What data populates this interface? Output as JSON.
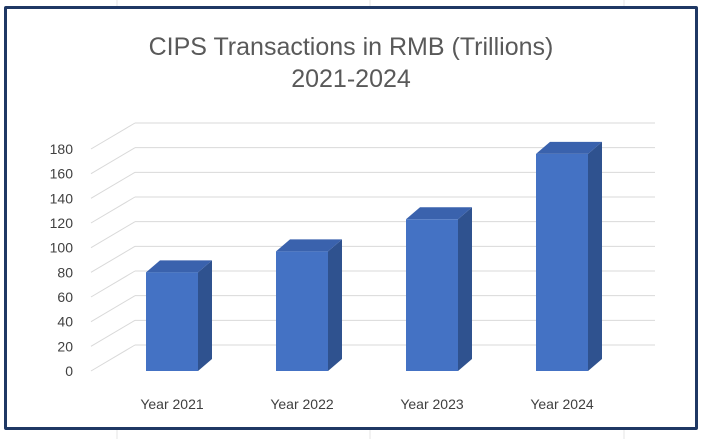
{
  "colors": {
    "frame": "#1f3864",
    "bar_front": "#4472c4",
    "bar_side": "#2f528f",
    "bar_top": "#3a62ad",
    "grid": "#d9d9d9",
    "text": "#595959"
  },
  "chart_data": {
    "type": "bar",
    "style": "3d-column",
    "title": "CIPS Transactions in RMB (Trillions)",
    "subtitle": "2021-2024",
    "categories": [
      "Year 2021",
      "Year 2022",
      "Year 2023",
      "Year 2024"
    ],
    "values": [
      80,
      97,
      123,
      176
    ],
    "ylim": [
      0,
      180
    ],
    "yticks": [
      "0",
      "20",
      "40",
      "60",
      "80",
      "100",
      "120",
      "140",
      "160",
      "180"
    ],
    "grid": true,
    "legend": "none"
  }
}
